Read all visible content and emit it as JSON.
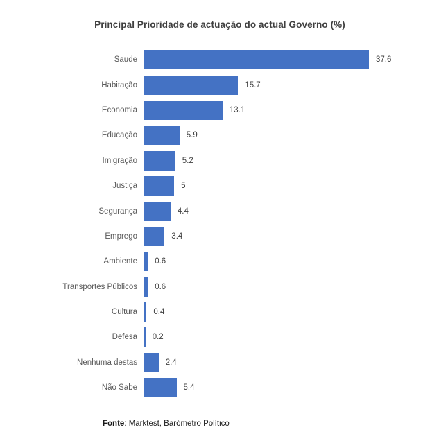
{
  "chart_data": {
    "type": "bar",
    "orientation": "horizontal",
    "title": "Principal Prioridade de actuação do actual Governo (%)",
    "categories": [
      "Saude",
      "Habitação",
      "Economia",
      "Educação",
      "Imigração",
      "Justiça",
      "Segurança",
      "Emprego",
      "Ambiente",
      "Transportes Públicos",
      "Cultura",
      "Defesa",
      "Nenhuma destas",
      "Não Sabe"
    ],
    "values": [
      37.6,
      15.7,
      13.1,
      5.9,
      5.2,
      5,
      4.4,
      3.4,
      0.6,
      0.6,
      0.4,
      0.2,
      2.4,
      5.4
    ],
    "value_labels": [
      "37.6",
      "15.7",
      "13.1",
      "5.9",
      "5.2",
      "5",
      "4.4",
      "3.4",
      "0.6",
      "0.6",
      "0.4",
      "0.2",
      "2.4",
      "5.4"
    ],
    "xlim": [
      0,
      40
    ],
    "grid": false,
    "legend": "none",
    "bar_color": "#4472C4",
    "title_color": "#404040",
    "label_color": "#595959",
    "value_color": "#404040"
  },
  "footer": {
    "source_label": "Fonte",
    "source_rest": ": Marktest, Barómetro Político"
  }
}
